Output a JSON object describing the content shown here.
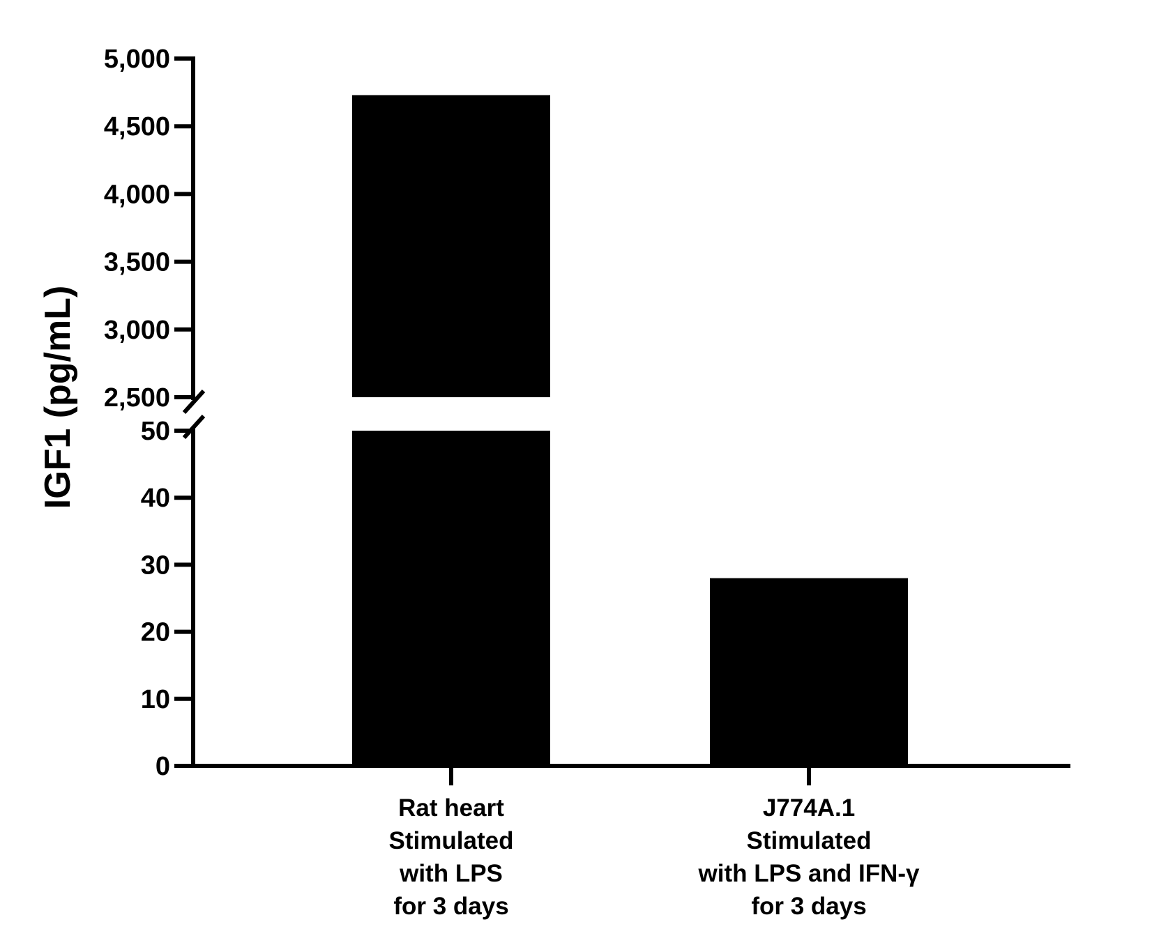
{
  "chart_data": {
    "type": "bar",
    "ylabel": "IGF1 (pg/mL)",
    "xlabel": "",
    "categories": [
      [
        "Rat heart",
        "Stimulated",
        "with LPS",
        "for 3 days"
      ],
      [
        "J774A.1",
        "Stimulated",
        "with LPS and IFN-γ",
        "for 3 days"
      ]
    ],
    "values": [
      4730,
      28
    ],
    "bar_color": "#000000",
    "y_axis_broken": true,
    "y_segments": [
      {
        "range": [
          0,
          50
        ],
        "ticks": [
          0,
          10,
          20,
          30,
          40,
          50
        ],
        "tick_labels": [
          "0",
          "10",
          "20",
          "30",
          "40",
          "50"
        ]
      },
      {
        "range": [
          2500,
          5000
        ],
        "ticks": [
          2500,
          3000,
          3500,
          4000,
          4500,
          5000
        ],
        "tick_labels": [
          "2,500",
          "3,000",
          "3,500",
          "4,000",
          "4,500",
          "5,000"
        ]
      }
    ],
    "grid": false,
    "legend": "none"
  }
}
